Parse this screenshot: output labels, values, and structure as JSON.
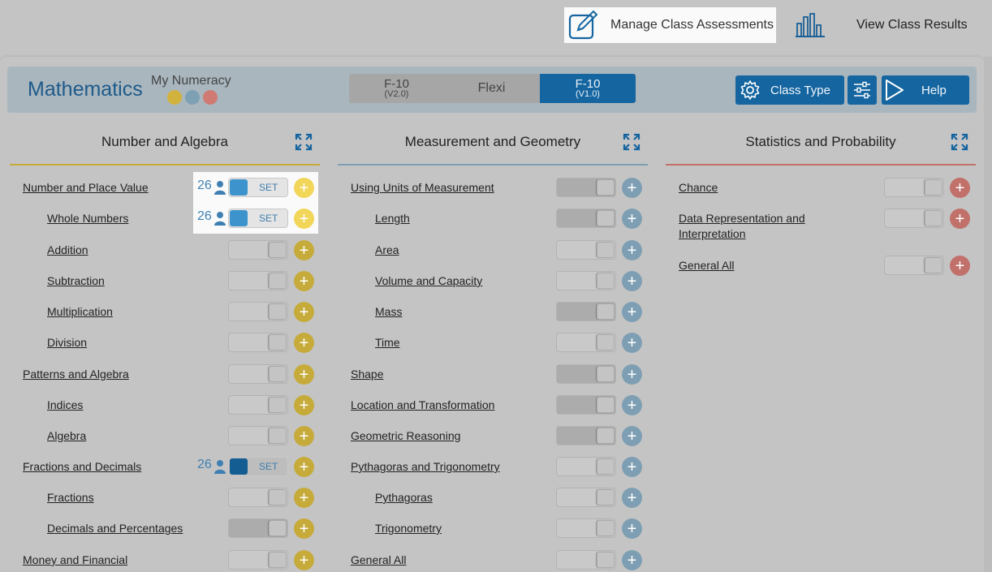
{
  "topbar": {
    "manage_label": "Manage Class Assessments",
    "results_label": "View Class Results"
  },
  "header": {
    "title": "Mathematics",
    "subtitle": "My Numeracy",
    "dots": [
      "#d1b23d",
      "#7ea0b5",
      "#cf7b73"
    ],
    "versions": [
      {
        "main": "F-10",
        "sub": "(V2.0)"
      },
      {
        "main": "Flexi",
        "sub": ""
      },
      {
        "main": "F-10",
        "sub": "(V1.0)"
      }
    ],
    "class_type_label": "Class Type",
    "help_label": "Help"
  },
  "colors": {
    "accent": "#1565a0",
    "algebra": "#c6ab3a",
    "geometry": "#7e9fb3",
    "statistics": "#c1706a"
  },
  "columns": [
    {
      "title": "Number and Algebra",
      "line_color": "#c6ab3a",
      "items": [
        {
          "label": "Number and Place Value",
          "indent": false,
          "set": true,
          "count": "26",
          "set_label": "SET",
          "grey": false,
          "dark": false
        },
        {
          "label": "Whole Numbers",
          "indent": true,
          "set": true,
          "count": "26",
          "set_label": "SET",
          "grey": false,
          "dark": false
        },
        {
          "label": "Addition",
          "indent": true,
          "set": false,
          "dark": false
        },
        {
          "label": "Subtraction",
          "indent": true,
          "set": false,
          "dark": false
        },
        {
          "label": "Multiplication",
          "indent": true,
          "set": false,
          "dark": false
        },
        {
          "label": "Division",
          "indent": true,
          "set": false,
          "dark": false
        },
        {
          "label": "Patterns and Algebra",
          "indent": false,
          "set": false,
          "dark": false
        },
        {
          "label": "Indices",
          "indent": true,
          "set": false,
          "dark": false
        },
        {
          "label": "Algebra",
          "indent": true,
          "set": false,
          "dark": false
        },
        {
          "label": "Fractions and Decimals",
          "indent": false,
          "set": true,
          "count": "26",
          "set_label": "SET",
          "grey": true,
          "dark": false
        },
        {
          "label": "Fractions",
          "indent": true,
          "set": false,
          "dark": false
        },
        {
          "label": "Decimals and Percentages",
          "indent": true,
          "set": false,
          "dark": true
        },
        {
          "label": "Money and Financial",
          "indent": false,
          "set": false,
          "dark": false
        }
      ]
    },
    {
      "title": "Measurement and Geometry",
      "line_color": "#7e9fb3",
      "items": [
        {
          "label": "Using Units of Measurement",
          "indent": false,
          "set": false,
          "dark": true
        },
        {
          "label": "Length",
          "indent": true,
          "set": false,
          "dark": true
        },
        {
          "label": "Area",
          "indent": true,
          "set": false,
          "dark": false
        },
        {
          "label": "Volume and Capacity",
          "indent": true,
          "set": false,
          "dark": false
        },
        {
          "label": "Mass",
          "indent": true,
          "set": false,
          "dark": true
        },
        {
          "label": "Time",
          "indent": true,
          "set": false,
          "dark": false
        },
        {
          "label": "Shape",
          "indent": false,
          "set": false,
          "dark": true
        },
        {
          "label": "Location and Transformation",
          "indent": false,
          "set": false,
          "dark": true
        },
        {
          "label": "Geometric Reasoning",
          "indent": false,
          "set": false,
          "dark": true
        },
        {
          "label": "Pythagoras and Trigonometry",
          "indent": false,
          "set": false,
          "dark": false
        },
        {
          "label": "Pythagoras",
          "indent": true,
          "set": false,
          "dark": false
        },
        {
          "label": "Trigonometry",
          "indent": true,
          "set": false,
          "dark": false
        },
        {
          "label": "General All",
          "indent": false,
          "set": false,
          "dark": false
        }
      ]
    },
    {
      "title": "Statistics and Probability",
      "line_color": "#c1706a",
      "items": [
        {
          "label": "Chance",
          "indent": false,
          "set": false,
          "dark": false
        },
        {
          "label": "Data Representation and Interpretation",
          "indent": false,
          "set": false,
          "dark": false
        },
        {
          "label": "General All",
          "indent": false,
          "set": false,
          "dark": false
        }
      ]
    }
  ]
}
